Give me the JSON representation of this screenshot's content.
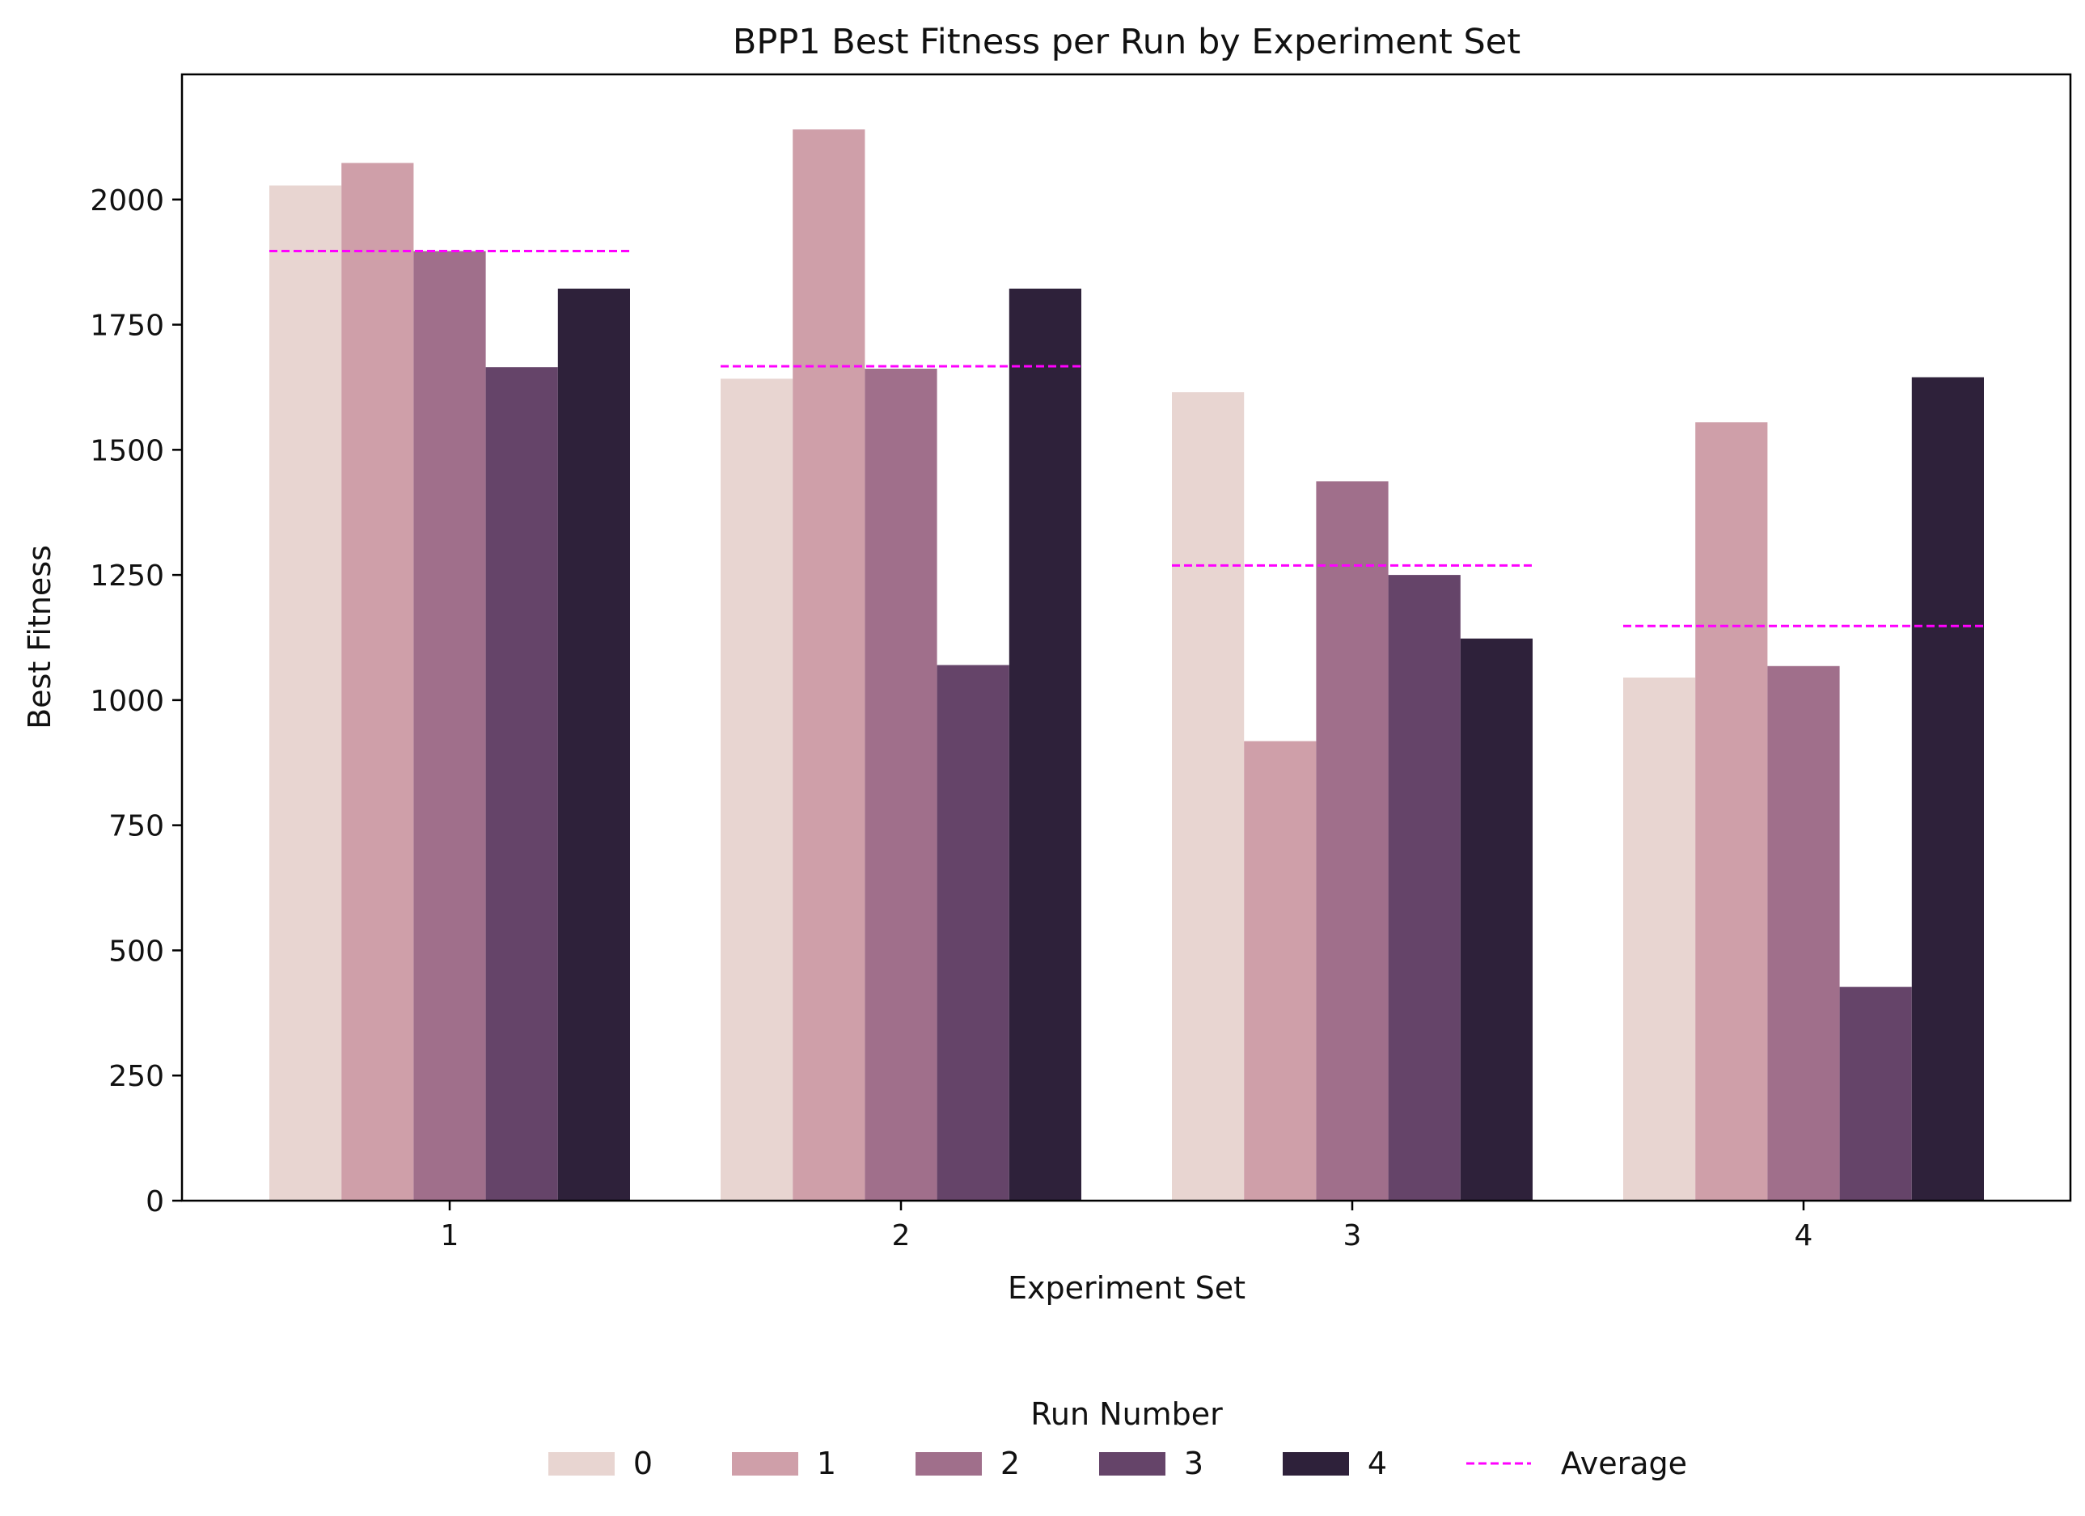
{
  "chart_data": {
    "type": "bar",
    "title": "BPP1 Best Fitness per Run by Experiment Set",
    "xlabel": "Experiment Set",
    "ylabel": "Best Fitness",
    "categories": [
      "1",
      "2",
      "3",
      "4"
    ],
    "ylim": [
      0,
      2250
    ],
    "yticks": [
      0,
      250,
      500,
      750,
      1000,
      1250,
      1500,
      1750,
      2000
    ],
    "ytick_labels": [
      "0",
      "250",
      "500",
      "750",
      "1000",
      "1250",
      "1500",
      "1750",
      "2000"
    ],
    "series": [
      {
        "name": "0",
        "color": "#e8d5d1",
        "values": [
          2028,
          1642,
          1615,
          1045
        ]
      },
      {
        "name": "1",
        "color": "#cf9fa9",
        "values": [
          2073,
          2140,
          918,
          1555
        ]
      },
      {
        "name": "2",
        "color": "#a06f8b",
        "values": [
          1897,
          1662,
          1437,
          1068
        ]
      },
      {
        "name": "3",
        "color": "#654469",
        "values": [
          1665,
          1070,
          1250,
          427
        ]
      },
      {
        "name": "4",
        "color": "#2e213a",
        "values": [
          1822,
          1822,
          1123,
          1645
        ]
      }
    ],
    "average": {
      "name": "Average",
      "color": "#ff00ff",
      "values": [
        1897,
        1667,
        1269,
        1148
      ]
    },
    "legend": {
      "title": "Run Number",
      "placement": "bottom-center"
    },
    "grid": false
  }
}
